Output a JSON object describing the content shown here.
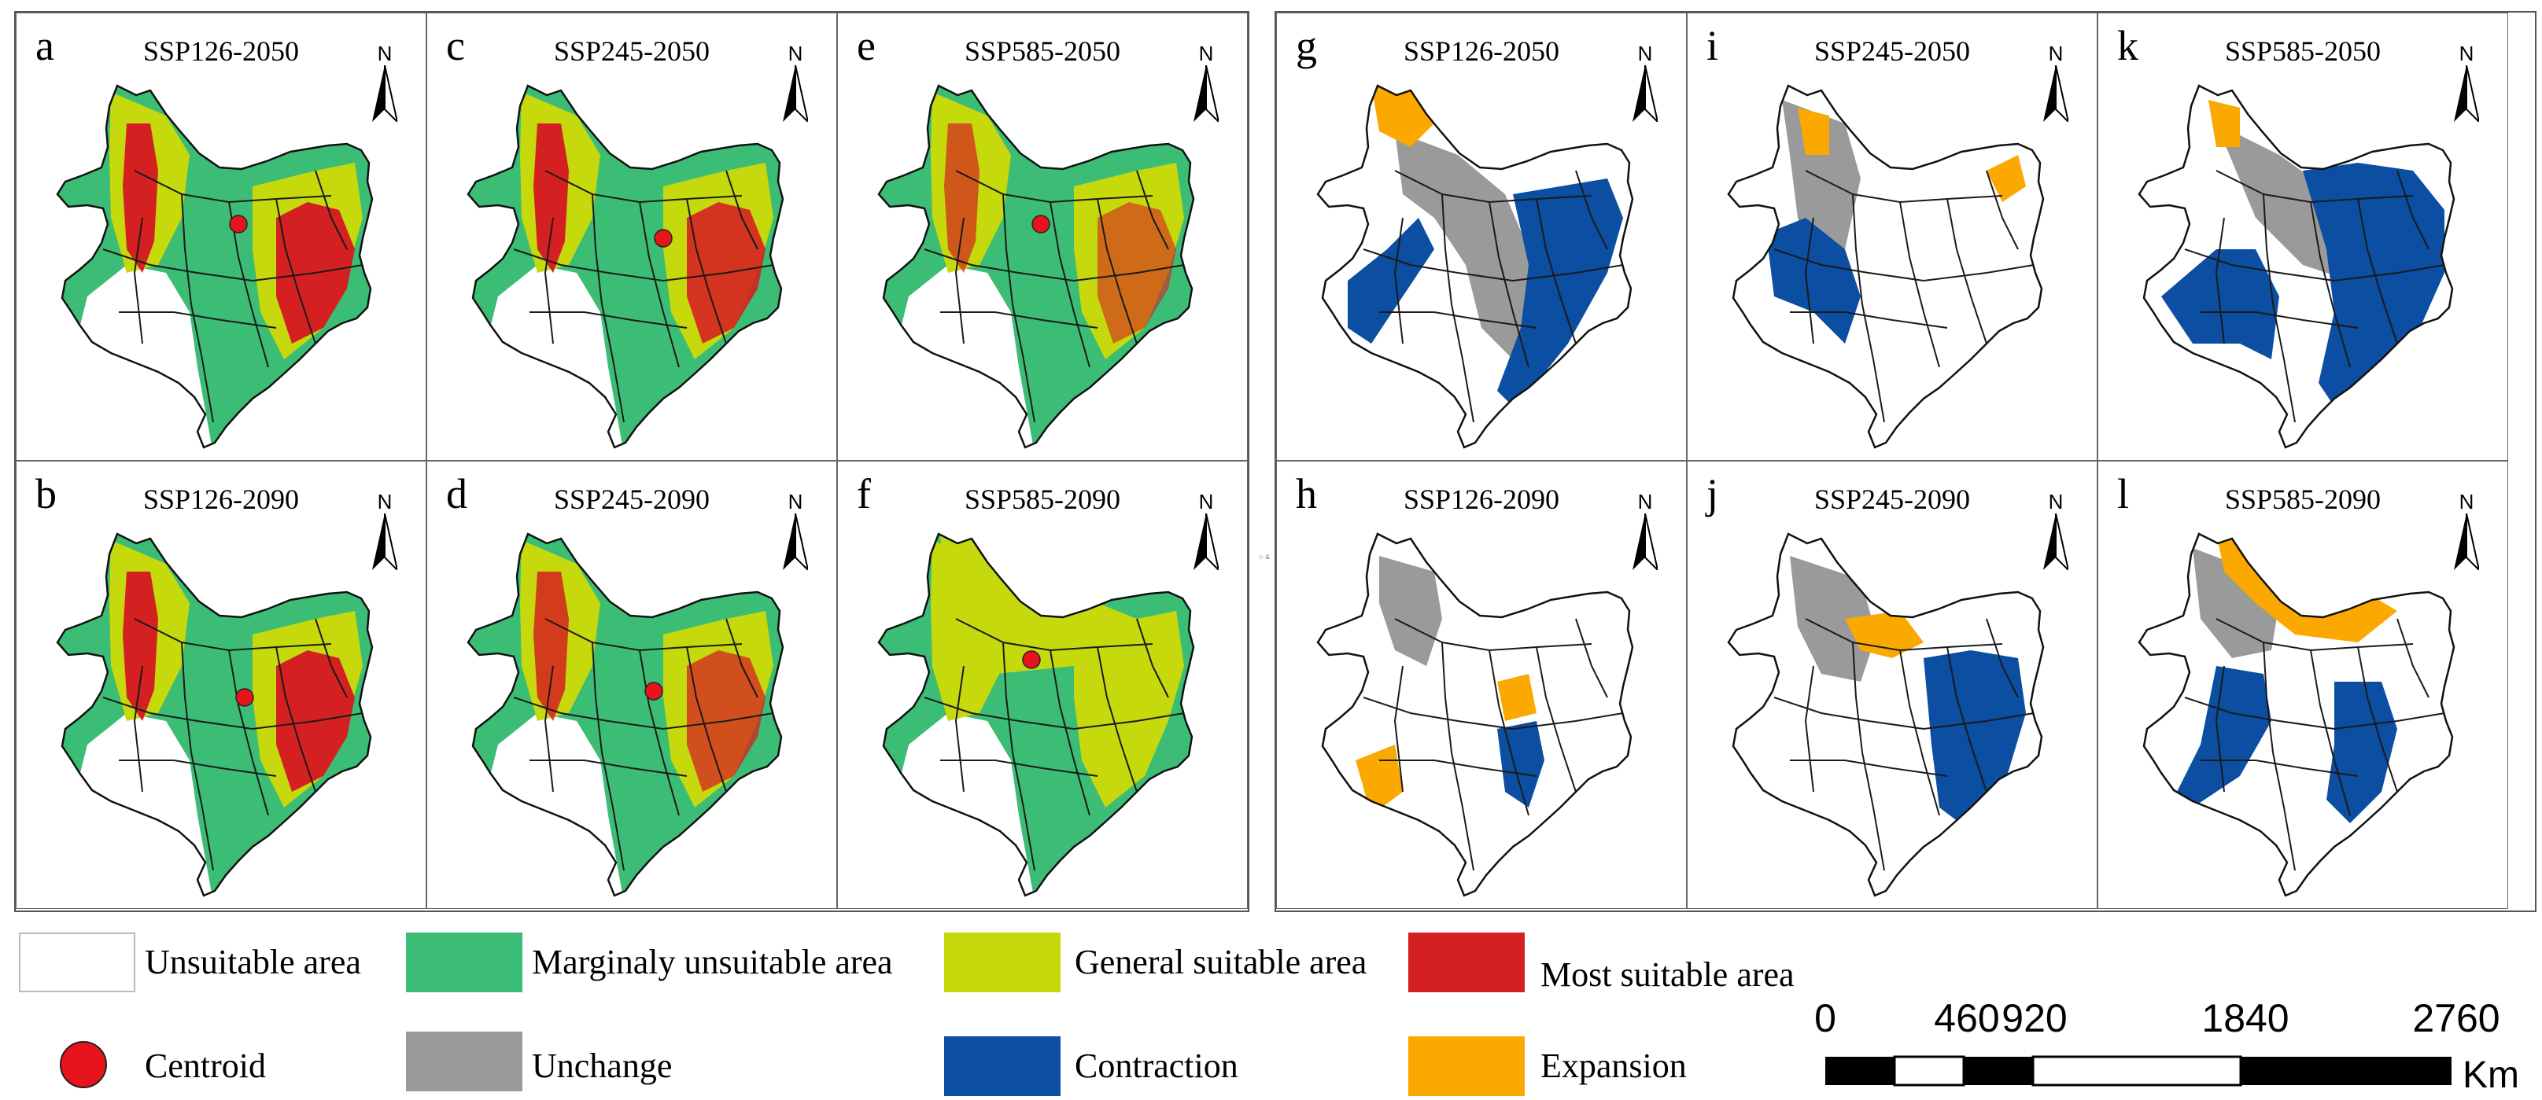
{
  "colors": {
    "unsuitable": "#ffffff",
    "marginal": "#3cbd76",
    "general": "#c6d90c",
    "most": "#d42021",
    "centroid": "#e8141c",
    "unchange": "#9a9a9a",
    "contraction": "#0b4ea2",
    "expansion": "#fba900"
  },
  "north_label": "N",
  "group_left": {
    "panels": [
      {
        "letter": "a",
        "title": "SSP126-2050",
        "icon": "suitability-map"
      },
      {
        "letter": "c",
        "title": "SSP245-2050",
        "icon": "suitability-map"
      },
      {
        "letter": "e",
        "title": "SSP585-2050",
        "icon": "suitability-map"
      },
      {
        "letter": "b",
        "title": "SSP126-2090",
        "icon": "suitability-map"
      },
      {
        "letter": "d",
        "title": "SSP245-2090",
        "icon": "suitability-map"
      },
      {
        "letter": "f",
        "title": "SSP585-2090",
        "icon": "suitability-map"
      }
    ]
  },
  "group_right": {
    "panels": [
      {
        "letter": "g",
        "title": "SSP126-2050",
        "icon": "change-map"
      },
      {
        "letter": "i",
        "title": "SSP245-2050",
        "icon": "change-map"
      },
      {
        "letter": "k",
        "title": "SSP585-2050",
        "icon": "change-map"
      },
      {
        "letter": "h",
        "title": "SSP126-2090",
        "icon": "change-map"
      },
      {
        "letter": "j",
        "title": "SSP245-2090",
        "icon": "change-map"
      },
      {
        "letter": "l",
        "title": "SSP585-2090",
        "icon": "change-map"
      }
    ]
  },
  "legend": {
    "unsuitable": "Unsuitable area",
    "marginal": "Marginaly unsuitable area",
    "general": "General suitable area",
    "most": "Most suitable area",
    "centroid": "Centroid",
    "unchange": "Unchange",
    "contraction": "Contraction",
    "expansion": "Expansion"
  },
  "scale_bar": {
    "ticks": [
      "0",
      "460",
      "920",
      "1840",
      "2760"
    ],
    "unit": "Km"
  },
  "tiny_mark": "☆ &"
}
